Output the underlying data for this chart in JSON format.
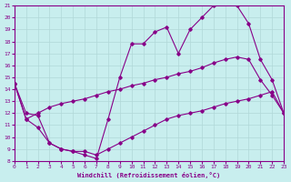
{
  "xlabel": "Windchill (Refroidissement éolien,°C)",
  "xlim": [
    0,
    23
  ],
  "ylim": [
    8,
    21
  ],
  "yticks": [
    8,
    9,
    10,
    11,
    12,
    13,
    14,
    15,
    16,
    17,
    18,
    19,
    20,
    21
  ],
  "xticks": [
    0,
    1,
    2,
    3,
    4,
    5,
    6,
    7,
    8,
    9,
    10,
    11,
    12,
    13,
    14,
    15,
    16,
    17,
    18,
    19,
    20,
    21,
    22,
    23
  ],
  "bg_color": "#c8eeee",
  "line_color": "#880088",
  "grid_color": "#b0d8d8",
  "line1_x": [
    0,
    1,
    2,
    3,
    4,
    5,
    6,
    7,
    8,
    9,
    10,
    11,
    12,
    13,
    14,
    15,
    16,
    17,
    18,
    19,
    20,
    21,
    22,
    23
  ],
  "line1_y": [
    14.5,
    12.0,
    11.8,
    9.5,
    9.0,
    8.8,
    8.5,
    8.2,
    11.5,
    15.0,
    17.8,
    17.8,
    18.8,
    19.2,
    17.0,
    19.0,
    20.0,
    21.0,
    21.2,
    21.0,
    19.5,
    16.5,
    14.8,
    12.0
  ],
  "line2_x": [
    0,
    1,
    2,
    3,
    4,
    5,
    6,
    7,
    8,
    9,
    10,
    11,
    12,
    13,
    14,
    15,
    16,
    17,
    18,
    19,
    20,
    21,
    22,
    23
  ],
  "line2_y": [
    14.5,
    11.5,
    12.0,
    12.5,
    12.8,
    13.0,
    13.2,
    13.5,
    13.8,
    14.0,
    14.3,
    14.5,
    14.8,
    15.0,
    15.3,
    15.5,
    15.8,
    16.2,
    16.5,
    16.7,
    16.5,
    14.8,
    13.5,
    12.0
  ],
  "line3_x": [
    0,
    1,
    2,
    3,
    4,
    5,
    6,
    7,
    8,
    9,
    10,
    11,
    12,
    13,
    14,
    15,
    16,
    17,
    18,
    19,
    20,
    21,
    22,
    23
  ],
  "line3_y": [
    14.5,
    11.5,
    10.8,
    9.5,
    9.0,
    8.8,
    8.8,
    8.5,
    9.0,
    9.5,
    10.0,
    10.5,
    11.0,
    11.5,
    11.8,
    12.0,
    12.2,
    12.5,
    12.8,
    13.0,
    13.2,
    13.5,
    13.8,
    12.0
  ]
}
